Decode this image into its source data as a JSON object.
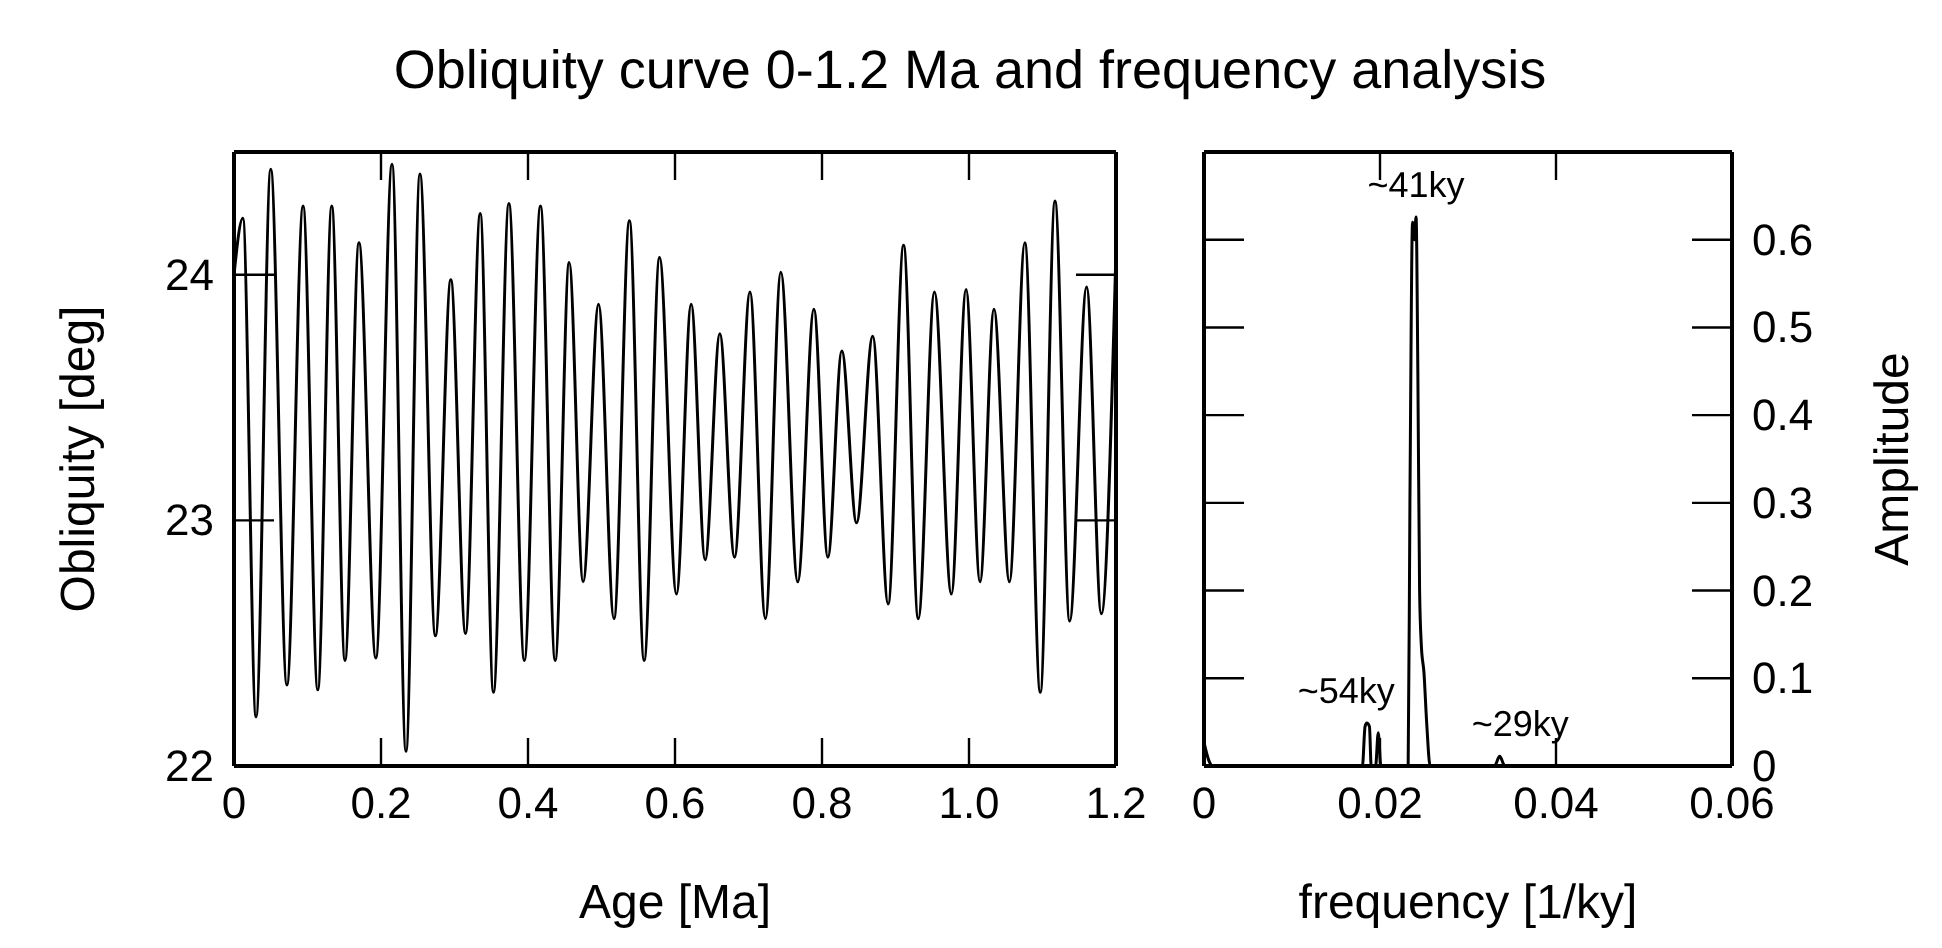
{
  "chart_data": [
    {
      "type": "line",
      "title": "Obliquity curve 0-1.2 Ma and frequency analysis",
      "xlabel": "Age [Ma]",
      "ylabel": "Obliquity [deg]",
      "color": "#000000",
      "x": [
        0,
        0.012,
        0.03,
        0.05,
        0.072,
        0.094,
        0.114,
        0.133,
        0.151,
        0.17,
        0.193,
        0.215,
        0.234,
        0.253,
        0.274,
        0.295,
        0.315,
        0.335,
        0.353,
        0.374,
        0.395,
        0.417,
        0.437,
        0.456,
        0.475,
        0.496,
        0.517,
        0.538,
        0.558,
        0.579,
        0.602,
        0.622,
        0.641,
        0.661,
        0.681,
        0.702,
        0.723,
        0.744,
        0.767,
        0.789,
        0.808,
        0.827,
        0.847,
        0.869,
        0.89,
        0.911,
        0.931,
        0.953,
        0.976,
        0.996,
        1.015,
        1.034,
        1.055,
        1.076,
        1.097,
        1.117,
        1.137,
        1.16,
        1.18,
        1.2
      ],
      "values": [
        24.0,
        24.23,
        22.2,
        24.43,
        22.33,
        24.28,
        22.31,
        24.28,
        22.43,
        24.13,
        22.44,
        24.45,
        22.06,
        24.41,
        22.53,
        23.98,
        22.54,
        24.25,
        22.3,
        24.29,
        22.43,
        24.28,
        22.43,
        24.05,
        22.75,
        23.88,
        22.6,
        24.22,
        22.43,
        24.07,
        22.7,
        23.88,
        22.84,
        23.76,
        22.85,
        23.93,
        22.6,
        24.01,
        22.75,
        23.86,
        22.85,
        23.69,
        22.99,
        23.75,
        22.66,
        24.12,
        22.6,
        23.93,
        22.7,
        23.94,
        22.75,
        23.86,
        22.75,
        24.13,
        22.3,
        24.3,
        22.59,
        23.95,
        22.62,
        24.1
      ],
      "xlim": [
        0,
        1.2
      ],
      "ylim": [
        22,
        24.5
      ],
      "xticks": [
        0,
        0.2,
        0.4,
        0.6,
        0.8,
        {
          "value": 1.0,
          "label": "1.0"
        },
        1.2
      ],
      "yticks": [
        22,
        23,
        24
      ]
    },
    {
      "type": "line",
      "xlabel": "frequency [1/ky]",
      "ylabel": "Amplitude",
      "series": [
        {
          "color": "#000000",
          "x": [
            0,
            0.0006,
            0.001,
            0.017,
            0.018,
            0.0183,
            0.0185,
            0.0188,
            0.019,
            0.0195,
            0.0198,
            0.0201,
            0.0232,
            0.0234,
            0.0237,
            0.0239,
            0.0241,
            0.0243,
            0.0245,
            0.0247,
            0.025,
            0.0253,
            0.0257,
            0.033,
            0.0336,
            0.0342,
            0.06
          ],
          "values": [
            0.027,
            0.005,
            0,
            0,
            0,
            0.045,
            0.049,
            0.045,
            0,
            0,
            0.038,
            0,
            0,
            0.3,
            0.62,
            0.6,
            0.626,
            0.45,
            0.2,
            0.137,
            0.106,
            0.05,
            0,
            0,
            0.011,
            0,
            0
          ]
        }
      ],
      "xlim": [
        0,
        0.06
      ],
      "ylim": [
        0,
        0.7
      ],
      "xticks": [
        0,
        0.02,
        0.04,
        0.06
      ],
      "yticks": [
        0,
        0.1,
        0.2,
        0.3,
        0.4,
        0.5,
        0.6
      ],
      "annotations": [
        {
          "text": "~41ky",
          "x": 0.0241,
          "y": 0.626
        },
        {
          "text": "~54ky",
          "x": 0.0185,
          "y": 0.049
        },
        {
          "text": "~29ky",
          "x": 0.0336,
          "y": 0.011
        }
      ]
    }
  ]
}
